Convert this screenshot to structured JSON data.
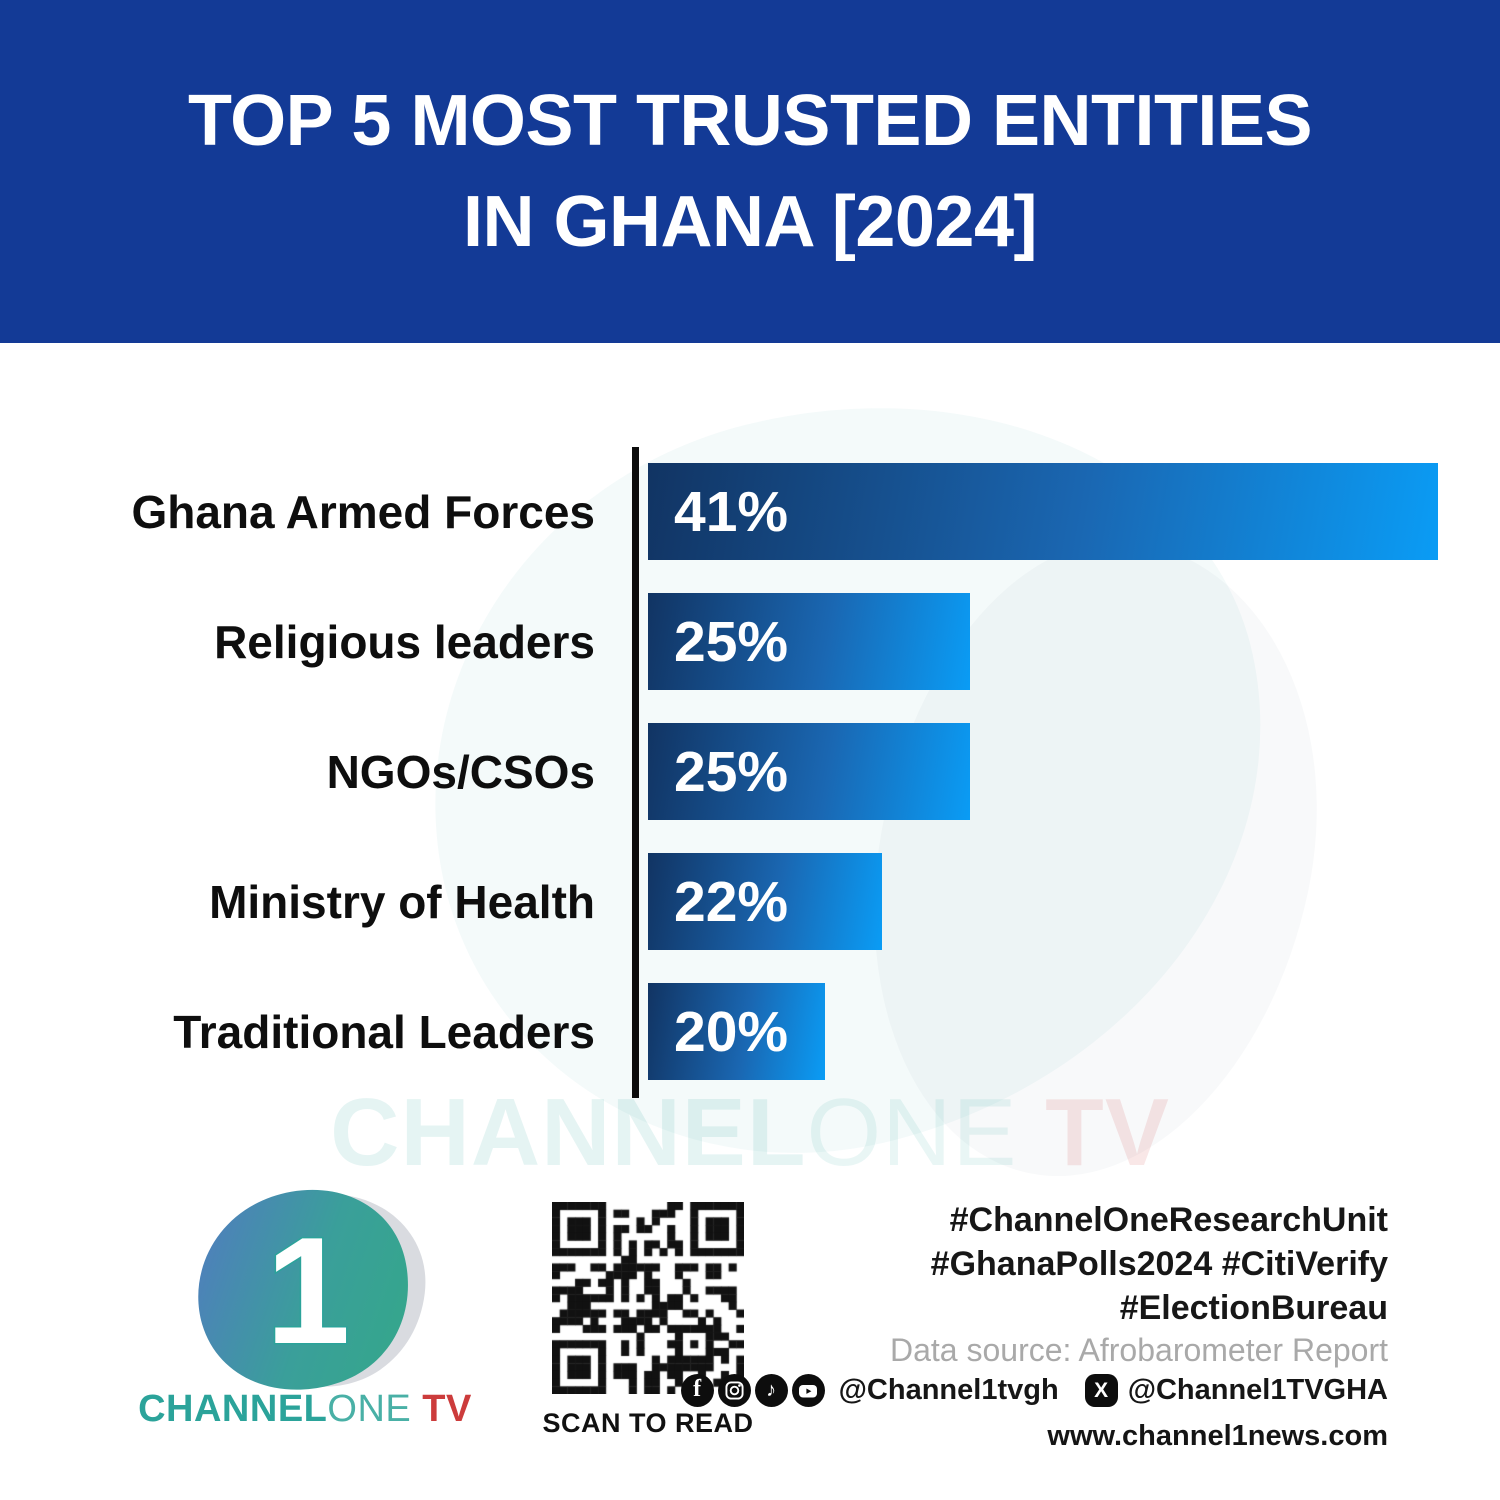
{
  "header": {
    "title_line1": "TOP 5 MOST TRUSTED ENTITIES",
    "title_line2": "IN GHANA [2024]",
    "banner_color": "#133a96"
  },
  "chart_data": {
    "type": "bar",
    "orientation": "horizontal",
    "title": "Top 5 Most Trusted Entities in Ghana [2024]",
    "categories": [
      "Ghana Armed Forces",
      "Religious leaders",
      "NGOs/CSOs",
      "Ministry of Health",
      "Traditional Leaders"
    ],
    "values": [
      41,
      25,
      25,
      22,
      20
    ],
    "value_labels": [
      "41%",
      "25%",
      "25%",
      "22%",
      "20%"
    ],
    "unit": "percent",
    "rendered_width_pct": [
      100,
      40.8,
      40.8,
      29.6,
      22.4
    ],
    "bar_gradient": [
      "#113463",
      "#0a9cf5"
    ],
    "axis_color": "#0c0c0c",
    "label_color": "#0e0e0e",
    "grid": false,
    "legend": false
  },
  "watermark": {
    "channel": "CHANNEL",
    "one": "ONE",
    "tv": " TV"
  },
  "footer": {
    "logo": {
      "channel": "CHANNEL",
      "one": "ONE",
      "tv": " TV",
      "teal": "#2ba39a",
      "red": "#cc3c3c"
    },
    "qr_caption": "SCAN TO READ",
    "hashtags": [
      "#ChannelOneResearchUnit",
      "#GhanaPolls2024 #CitiVerify",
      "#ElectionBureau"
    ],
    "data_source": "Data source: Afrobarometer Report",
    "social": {
      "icons": [
        "facebook-icon",
        "instagram-icon",
        "tiktok-icon",
        "youtube-icon"
      ],
      "handle1": "@Channel1tvgh",
      "x_icon": "x-icon",
      "handle2": "@Channel1TVGHA"
    },
    "website": "www.channel1news.com"
  }
}
